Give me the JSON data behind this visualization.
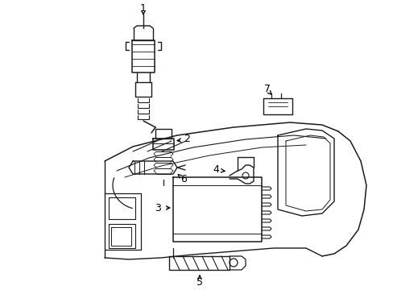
{
  "background_color": "#ffffff",
  "line_color": "#1a1a1a",
  "line_width": 1.0,
  "label_fontsize": 9,
  "fig_width": 4.89,
  "fig_height": 3.6,
  "dpi": 100
}
